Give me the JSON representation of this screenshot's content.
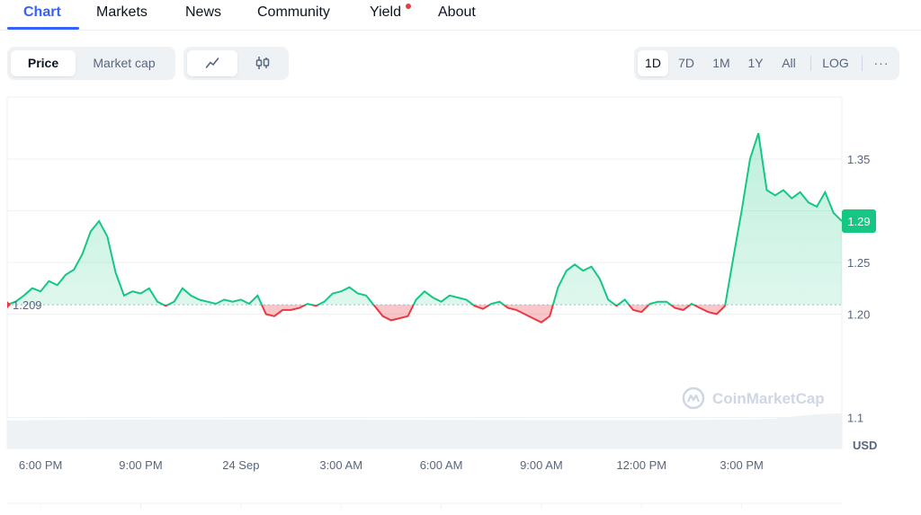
{
  "nav": {
    "tabs": [
      {
        "label": "Chart",
        "active": true
      },
      {
        "label": "Markets"
      },
      {
        "label": "News"
      },
      {
        "label": "Community"
      },
      {
        "label": "Yield",
        "badge_dot": true
      },
      {
        "label": "About"
      }
    ]
  },
  "controls": {
    "metric": [
      "Price",
      "Market cap"
    ],
    "metric_selected": "Price",
    "chart_type_icons": [
      "line-chart-icon",
      "candlestick-icon"
    ],
    "chart_type_selected": "line",
    "ranges": [
      "1D",
      "7D",
      "1M",
      "1Y",
      "All"
    ],
    "range_selected": "1D",
    "log_label": "LOG",
    "more_label": "···"
  },
  "chart_data": {
    "type": "line",
    "currency_label": "USD",
    "watermark": "CoinMarketCap",
    "ylim": [
      1.07,
      1.41
    ],
    "y_ticks": [
      {
        "value": 1.35,
        "label": "1.35"
      },
      {
        "value": 1.3,
        "label": ""
      },
      {
        "value": 1.25,
        "label": "1.25"
      },
      {
        "value": 1.2,
        "label": "1.20"
      },
      {
        "value": 1.1,
        "label": "1.1"
      }
    ],
    "baseline": {
      "value": 1.209,
      "label": "1.209"
    },
    "current": {
      "value": 1.29,
      "label": "1.29"
    },
    "x_ticks": [
      "6:00 PM",
      "9:00 PM",
      "24 Sep",
      "3:00 AM",
      "6:00 AM",
      "9:00 AM",
      "12:00 PM",
      "3:00 PM"
    ],
    "x_tick_hours": [
      1,
      4,
      7,
      10,
      13,
      16,
      19,
      22
    ],
    "x_range_hours": [
      0,
      25
    ],
    "colors": {
      "up": "#16c784",
      "down": "#ea3943"
    },
    "series": [
      {
        "x": [
          0,
          0.25,
          0.5,
          0.75,
          1,
          1.25,
          1.5,
          1.75,
          2,
          2.25,
          2.5,
          2.75,
          3,
          3.25,
          3.5,
          3.75,
          4,
          4.25,
          4.5,
          4.75,
          5,
          5.25,
          5.5,
          5.75,
          6,
          6.25,
          6.5,
          6.75,
          7,
          7.25,
          7.5,
          7.75,
          8,
          8.25,
          8.5,
          8.75,
          9,
          9.25,
          9.5,
          9.75,
          10,
          10.25,
          10.5,
          10.75,
          11,
          11.25,
          11.5,
          11.75,
          12,
          12.25,
          12.5,
          12.75,
          13,
          13.25,
          13.5,
          13.75,
          14,
          14.25,
          14.5,
          14.75,
          15,
          15.25,
          15.5,
          15.75,
          16,
          16.25,
          16.5,
          16.75,
          17,
          17.25,
          17.5,
          17.75,
          18,
          18.25,
          18.5,
          18.75,
          19,
          19.25,
          19.5,
          19.75,
          20,
          20.25,
          20.5,
          20.75,
          21,
          21.25,
          21.5,
          21.75,
          22,
          22.25,
          22.5,
          22.75,
          23,
          23.25,
          23.5,
          23.75,
          24,
          24.25,
          24.5,
          24.75,
          25
        ],
        "y": [
          1.209,
          1.212,
          1.218,
          1.225,
          1.222,
          1.232,
          1.228,
          1.238,
          1.243,
          1.258,
          1.28,
          1.29,
          1.275,
          1.24,
          1.218,
          1.222,
          1.22,
          1.225,
          1.212,
          1.208,
          1.212,
          1.225,
          1.218,
          1.214,
          1.212,
          1.21,
          1.214,
          1.212,
          1.214,
          1.21,
          1.218,
          1.2,
          1.198,
          1.204,
          1.204,
          1.206,
          1.21,
          1.208,
          1.212,
          1.22,
          1.222,
          1.226,
          1.22,
          1.218,
          1.208,
          1.198,
          1.194,
          1.196,
          1.198,
          1.214,
          1.222,
          1.216,
          1.212,
          1.218,
          1.216,
          1.214,
          1.208,
          1.205,
          1.21,
          1.212,
          1.206,
          1.204,
          1.2,
          1.196,
          1.192,
          1.198,
          1.226,
          1.242,
          1.248,
          1.242,
          1.246,
          1.234,
          1.214,
          1.208,
          1.214,
          1.204,
          1.202,
          1.21,
          1.212,
          1.212,
          1.206,
          1.204,
          1.21,
          1.206,
          1.202,
          1.2,
          1.208,
          1.255,
          1.3,
          1.35,
          1.375,
          1.32,
          1.315,
          1.32,
          1.312,
          1.318,
          1.308,
          1.304,
          1.318,
          1.298,
          1.29
        ]
      }
    ]
  }
}
